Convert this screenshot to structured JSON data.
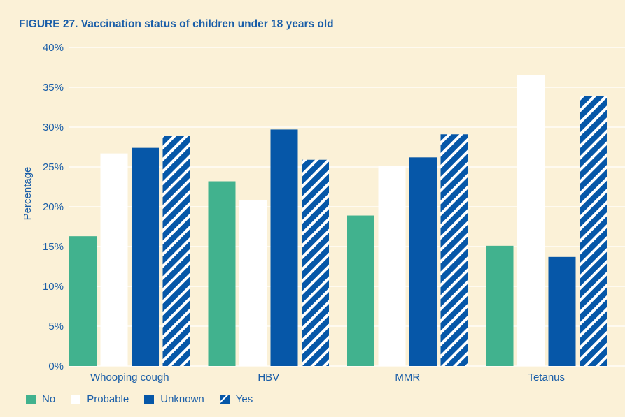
{
  "title": {
    "prefix": "FIGURE 27.",
    "text": "Vaccination status of children under 18 years old"
  },
  "colors": {
    "background": "#fbf1d7",
    "text": "#1a5ea8",
    "No": "#41b28e",
    "Probable": "#ffffff",
    "Unknown": "#0657a8",
    "Yes": "#0657a8",
    "grid": "#ffffff"
  },
  "chart_data": {
    "type": "bar",
    "categories": [
      "Whooping cough",
      "HBV",
      "MMR",
      "Tetanus"
    ],
    "series": [
      {
        "name": "No",
        "values": [
          16.3,
          23.2,
          18.9,
          15.1
        ],
        "fill": "solid"
      },
      {
        "name": "Probable",
        "values": [
          26.7,
          20.8,
          25.1,
          36.5
        ],
        "fill": "solid"
      },
      {
        "name": "Unknown",
        "values": [
          27.4,
          29.7,
          26.2,
          13.7
        ],
        "fill": "solid"
      },
      {
        "name": "Yes",
        "values": [
          28.9,
          25.9,
          29.1,
          33.9
        ],
        "fill": "hatched"
      }
    ],
    "ylabel": "Percentage",
    "xlabel": "",
    "ylim": [
      0,
      40
    ],
    "yticks": [
      "0%",
      "5%",
      "10%",
      "15%",
      "20%",
      "25%",
      "30%",
      "35%",
      "40%"
    ],
    "grid": true,
    "legend_position": "bottom-left"
  }
}
